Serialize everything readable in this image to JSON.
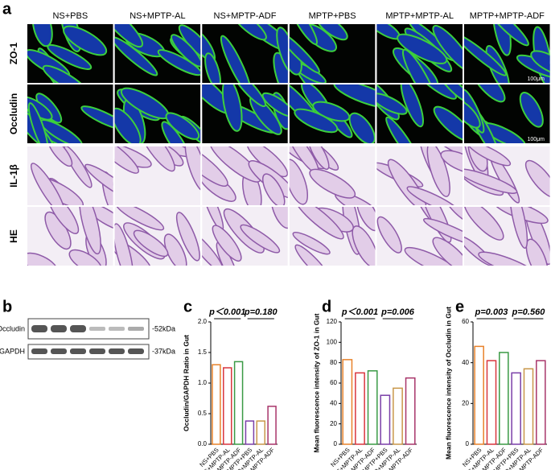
{
  "panel_labels": [
    "a",
    "b",
    "c",
    "d",
    "e"
  ],
  "image_grid": {
    "columns": [
      "NS+PBS",
      "NS+MPTP-AL",
      "NS+MPTP-ADF",
      "MPTP+PBS",
      "MPTP+MPTP-AL",
      "MPTP+MPTP-ADF"
    ],
    "rows": [
      "ZO-1",
      "Occludin",
      "IL-1β",
      "HE"
    ],
    "scale_bars": [
      "100μm",
      "100μm"
    ]
  },
  "blot": {
    "bands": [
      "Occludin",
      "GAPDH"
    ],
    "sizes": [
      "-52kDa",
      "-37kDa"
    ]
  },
  "chart_data": [
    {
      "type": "bar",
      "ylabel": "Occludin/GAPDH Ratio in Gut",
      "categories": [
        "NS+PBS",
        "NS+MPTP-AL",
        "NS+MPTP-ADF",
        "MPTP+PBS",
        "MPTP+MPTP-AL",
        "MPTP+MPTP-ADF"
      ],
      "values": [
        1.3,
        1.25,
        1.35,
        0.38,
        0.38,
        0.62
      ],
      "colors": [
        "#e8822a",
        "#d9363e",
        "#3a9a45",
        "#7a3fa8",
        "#c9974a",
        "#a8356a"
      ],
      "ylim": [
        0,
        2
      ],
      "yticks": [
        {
          "value": 0,
          "label": "0.0"
        },
        0.5,
        {
          "value": 1,
          "label": "1.0"
        },
        1.5,
        {
          "value": 2,
          "label": "2.0"
        }
      ],
      "annotations": [
        "p＜0.001",
        "p=0.180"
      ]
    },
    {
      "type": "bar",
      "ylabel": "Mean fluorescence intensity of ZO-1 in Gut",
      "categories": [
        "NS+PBS",
        "NS+MPTP-AL",
        "NS+MPTP-ADF",
        "MPTP+PBS",
        "MPTP+MPTP-AL",
        "MPTP+MPTP-ADF"
      ],
      "values": [
        83,
        70,
        72,
        48,
        55,
        65
      ],
      "colors": [
        "#e8822a",
        "#d9363e",
        "#3a9a45",
        "#7a3fa8",
        "#c9974a",
        "#a8356a"
      ],
      "ylim": [
        0,
        120
      ],
      "yticks": [
        0,
        20,
        40,
        60,
        80,
        100,
        120
      ],
      "annotations": [
        "p＜0.001",
        "p=0.006"
      ]
    },
    {
      "type": "bar",
      "ylabel": "Mean fluorescence intensity of Occludin in Gut",
      "categories": [
        "NS+PBS",
        "NS+MPTP-AL",
        "NS+MPTP-ADF",
        "MPTP+PBS",
        "MPTP+MPTP-AL",
        "MPTP+MPTP-ADF"
      ],
      "values": [
        48,
        41,
        45,
        35,
        37,
        41
      ],
      "colors": [
        "#e8822a",
        "#d9363e",
        "#3a9a45",
        "#7a3fa8",
        "#c9974a",
        "#a8356a"
      ],
      "ylim": [
        0,
        60
      ],
      "yticks": [
        0,
        20,
        40,
        60
      ],
      "annotations": [
        "p=0.003",
        "p=0.560"
      ]
    }
  ]
}
